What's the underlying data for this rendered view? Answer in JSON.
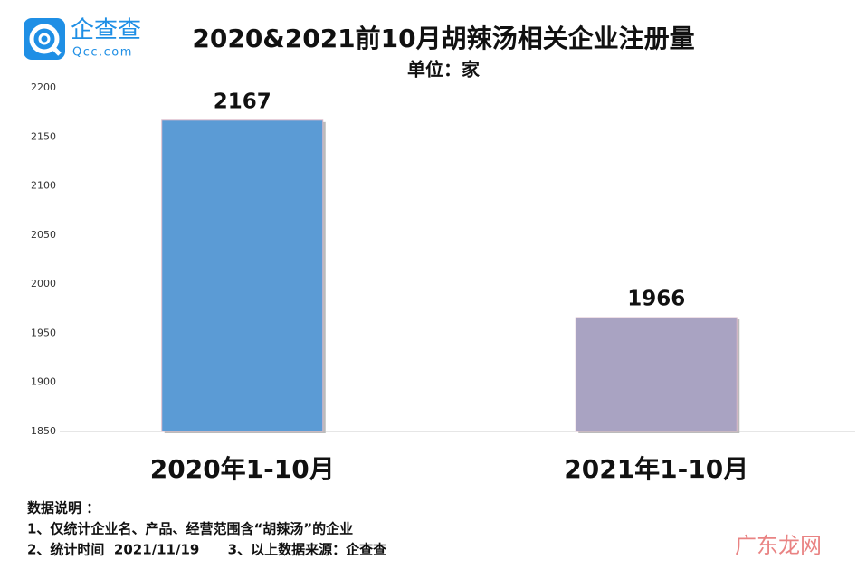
{
  "logo": {
    "name": "企查查",
    "url": "Qcc.com"
  },
  "watermark": "广东龙网",
  "chart_data": {
    "type": "bar",
    "title": "2020&2021前10月胡辣汤相关企业注册量",
    "subtitle": "单位：家",
    "categories": [
      "2020年1-10月",
      "2021年1-10月"
    ],
    "values": [
      2167,
      1966
    ],
    "colors": [
      "#5b9bd5",
      "#a9a3c2"
    ],
    "ylim": [
      1850,
      2200
    ],
    "yticks": [
      1850,
      1900,
      1950,
      2000,
      2050,
      2100,
      2150,
      2200
    ],
    "grid": false,
    "notes": [
      "数据说明 ：",
      "1、仅统计企业名、产品、经营范围含“胡辣汤”的企业",
      "2、统计时间  2021/11/19      3、以上数据来源：企查查"
    ]
  }
}
